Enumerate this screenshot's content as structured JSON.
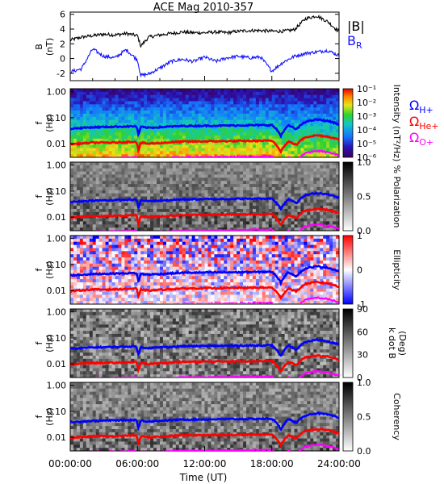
{
  "title": "ACE Mag 2010-357",
  "xlabel": "Time (UT)",
  "x_ticks": [
    "00:00:00",
    "06:00:00",
    "12:00:00",
    "18:00:00",
    "24:00:00"
  ],
  "colors": {
    "B_total": "#000000",
    "B_R": "#1414ff",
    "H_plus": "#0000ff",
    "He_plus": "#ff0000",
    "O_plus": "#ff00ff"
  },
  "legend_top": {
    "abs_b": "|B|",
    "b": "B",
    "b_sub": "R"
  },
  "legend_ion": [
    {
      "sym": "Ω",
      "sub": "H+",
      "color_key": "H_plus"
    },
    {
      "sym": "Ω",
      "sub": "He+",
      "color_key": "He_plus"
    },
    {
      "sym": "Ω",
      "sub": "O+",
      "color_key": "O_plus"
    }
  ],
  "chart_data": [
    {
      "type": "line",
      "panel": "B field",
      "ylabel": [
        "B",
        "(nT)"
      ],
      "ylim": [
        -3,
        6.3
      ],
      "y_ticks": [
        "6",
        "4",
        "2",
        "0",
        "-2"
      ],
      "x_hours": [
        0,
        1,
        2,
        3,
        4,
        5,
        6,
        6.3,
        7,
        8,
        9,
        10,
        11,
        12,
        13,
        14,
        15,
        16,
        17,
        18,
        19,
        20,
        21,
        22,
        23,
        24
      ],
      "series": [
        {
          "name": "|B|",
          "color_key": "B_total",
          "values": [
            2.5,
            2.9,
            3.1,
            3.3,
            3.2,
            3.4,
            3.1,
            1.7,
            2.9,
            3.2,
            3.4,
            3.6,
            3.5,
            3.5,
            3.6,
            3.5,
            3.7,
            3.8,
            3.8,
            3.7,
            3.7,
            3.9,
            5.4,
            5.8,
            5.0,
            3.6
          ]
        },
        {
          "name": "B_R",
          "color_key": "B_R",
          "values": [
            -1.8,
            -1.4,
            1.3,
            0.3,
            0.1,
            1.2,
            -0.2,
            -2.3,
            -2.1,
            -1.3,
            -0.4,
            -0.1,
            -0.4,
            0.2,
            -0.4,
            0.1,
            0.3,
            0.1,
            0.2,
            -1.7,
            -0.5,
            0.3,
            0.7,
            0.9,
            1.1,
            0.4
          ]
        }
      ]
    },
    {
      "type": "heatmap",
      "panel": "Intensity",
      "ylabel": [
        "f",
        "(Hz)"
      ],
      "y_ticks": [
        "1.00",
        "0.10",
        "0.01"
      ],
      "colorbar": {
        "label": "Intensity (nT²/Hz)",
        "ticks": [
          "10⁻¹",
          "10⁻²",
          "10⁻³",
          "10⁻⁴",
          "10⁻⁵",
          "10⁻⁶"
        ],
        "range": [
          "10⁻⁶",
          "10⁻¹"
        ]
      }
    },
    {
      "type": "heatmap",
      "panel": "Polarization",
      "ylabel": [
        "f",
        "(Hz)"
      ],
      "y_ticks": [
        "1.00",
        "0.10",
        "0.01"
      ],
      "colorbar": {
        "label": "% Polarization",
        "ticks": [
          "1.0",
          "0.5",
          "0.0"
        ],
        "range": [
          0,
          1
        ]
      }
    },
    {
      "type": "heatmap",
      "panel": "Ellipticity",
      "ylabel": [
        "f",
        "(Hz)"
      ],
      "y_ticks": [
        "1.00",
        "0.10",
        "0.01"
      ],
      "colorbar": {
        "label": "Ellipticity",
        "ticks": [
          "1",
          "0",
          "-1"
        ],
        "range": [
          -1,
          1
        ]
      }
    },
    {
      "type": "heatmap",
      "panel": "k dot B",
      "ylabel": [
        "f",
        "(Hz)"
      ],
      "y_ticks": [
        "1.00",
        "0.10",
        "0.01"
      ],
      "colorbar": {
        "label": [
          "k dot B",
          "(Deg)"
        ],
        "ticks": [
          "90",
          "60",
          "30",
          "0"
        ],
        "range": [
          0,
          90
        ]
      }
    },
    {
      "type": "heatmap",
      "panel": "Coherency",
      "ylabel": [
        "f",
        "(Hz)"
      ],
      "y_ticks": [
        "1.00",
        "0.10",
        "0.01"
      ],
      "colorbar": {
        "label": "Coherency",
        "ticks": [
          "1.0",
          "0.5",
          "0.0"
        ],
        "range": [
          0,
          1
        ]
      }
    },
    {
      "type": "line",
      "panel": "Ion gyrofrequency overlays (all spectral panels)",
      "x_hours": [
        0,
        2,
        4,
        5.9,
        6.1,
        6.3,
        7,
        10,
        14,
        18,
        18.8,
        19.5,
        20.2,
        21,
        22,
        23,
        24
      ],
      "series": [
        {
          "name": "ΩH+",
          "color_key": "H_plus",
          "values": [
            0.038,
            0.043,
            0.045,
            0.047,
            0.02,
            0.044,
            0.041,
            0.048,
            0.05,
            0.052,
            0.02,
            0.05,
            0.035,
            0.07,
            0.085,
            0.075,
            0.055
          ]
        },
        {
          "name": "ΩHe+",
          "color_key": "He_plus",
          "values": [
            0.0095,
            0.011,
            0.011,
            0.012,
            0.005,
            0.011,
            0.01,
            0.012,
            0.0125,
            0.013,
            0.005,
            0.012,
            0.009,
            0.018,
            0.021,
            0.019,
            0.014
          ]
        },
        {
          "name": "ΩO+",
          "color_key": "O_plus",
          "values": [
            0.0024,
            0.0027,
            0.0028,
            0.003,
            0.0013,
            0.0028,
            0.0026,
            0.003,
            0.0031,
            0.0033,
            0.0013,
            0.003,
            0.0022,
            0.0044,
            0.0053,
            0.0047,
            0.0035
          ]
        }
      ]
    }
  ]
}
